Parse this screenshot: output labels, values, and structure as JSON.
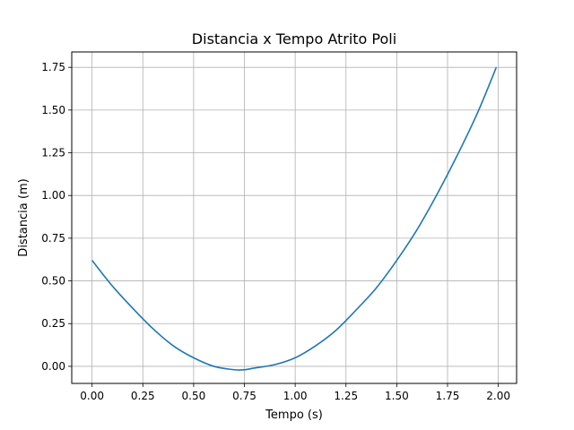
{
  "chart_data": {
    "type": "line",
    "title": "Distancia x Tempo Atrito Poli",
    "xlabel": "Tempo (s)",
    "ylabel": "Distancia (m)",
    "xlim": [
      -0.1,
      2.09
    ],
    "ylim": [
      -0.1,
      1.84
    ],
    "xticks": [
      0.0,
      0.25,
      0.5,
      0.75,
      1.0,
      1.25,
      1.5,
      1.75,
      2.0
    ],
    "xtick_labels": [
      "0.00",
      "0.25",
      "0.50",
      "0.75",
      "1.00",
      "1.25",
      "1.50",
      "1.75",
      "2.00"
    ],
    "yticks": [
      0.0,
      0.25,
      0.5,
      0.75,
      1.0,
      1.25,
      1.5,
      1.75
    ],
    "ytick_labels": [
      "0.00",
      "0.25",
      "0.50",
      "0.75",
      "1.00",
      "1.25",
      "1.50",
      "1.75"
    ],
    "grid": true,
    "line_color": "#1f77b4",
    "grid_color": "#b0b0b0",
    "series": [
      {
        "x": [
          0.0,
          0.1,
          0.2,
          0.3,
          0.4,
          0.5,
          0.6,
          0.7,
          0.75,
          0.8,
          0.9,
          1.0,
          1.1,
          1.2,
          1.3,
          1.4,
          1.5,
          1.6,
          1.7,
          1.8,
          1.9,
          1.99
        ],
        "y": [
          0.62,
          0.47,
          0.34,
          0.22,
          0.12,
          0.05,
          0.0,
          -0.02,
          -0.02,
          -0.01,
          0.01,
          0.05,
          0.12,
          0.21,
          0.33,
          0.46,
          0.62,
          0.8,
          1.01,
          1.24,
          1.49,
          1.75
        ]
      }
    ]
  }
}
